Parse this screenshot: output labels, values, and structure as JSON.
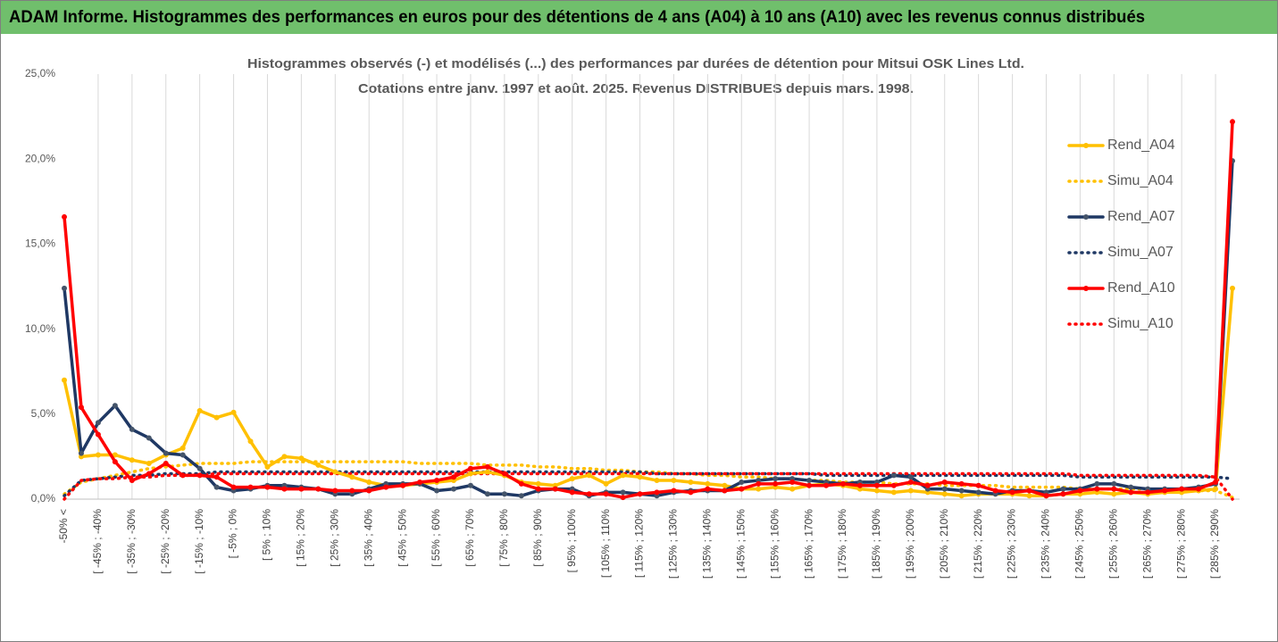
{
  "banner": "ADAM Informe. Histogrammes des performances en euros pour des détentions de 4 ans (A04) à 10 ans (A10) avec les revenus connus distribués",
  "chart_data": {
    "type": "line",
    "title": "Histogrammes observés (-) et modélisés (...) des performances par durées de détention pour Mitsui OSK Lines Ltd.",
    "subtitle": "Cotations entre janv. 1997 et août. 2025. Revenus DISTRIBUES depuis mars. 1998.",
    "categories": [
      "-50% <",
      null,
      "[ -45% ; -40%",
      null,
      "[ -35% ; -30%",
      null,
      "[ -25% ; -20%",
      null,
      "[ -15% ; -10%",
      null,
      "[ -5% ; 0%",
      null,
      "[ 5% ; 10%",
      null,
      "[ 15% ; 20%",
      null,
      "[ 25% ; 30%",
      null,
      "[ 35% ; 40%",
      null,
      "[ 45% ; 50%",
      null,
      "[ 55% ; 60%",
      null,
      "[ 65% ; 70%",
      null,
      "[ 75% ; 80%",
      null,
      "[ 85% ; 90%",
      null,
      "[ 95% ; 100%",
      null,
      "[ 105% ; 110%",
      null,
      "[ 115% ; 120%",
      null,
      "[ 125% ; 130%",
      null,
      "[ 135% ; 140%",
      null,
      "[ 145% ; 150%",
      null,
      "[ 155% ; 160%",
      null,
      "[ 165% ; 170%",
      null,
      "[ 175% ; 180%",
      null,
      "[ 185% ; 190%",
      null,
      "[ 195% ; 200%",
      null,
      "[ 205% ; 210%",
      null,
      "[ 215% ; 220%",
      null,
      "[ 225% ; 230%",
      null,
      "[ 235% ; 240%",
      null,
      "[ 245% ; 250%",
      null,
      "[ 255% ; 260%",
      null,
      "[ 265% ; 270%",
      null,
      "[ 275% ; 280%",
      null,
      "[ 285% ; 290%",
      null
    ],
    "series": [
      {
        "name": "Rend_A04",
        "color": "#ffc000",
        "dashed": false,
        "markers": true,
        "values": [
          7.0,
          2.5,
          2.6,
          2.6,
          2.3,
          2.1,
          2.6,
          3.0,
          5.2,
          4.8,
          5.1,
          3.4,
          1.9,
          2.5,
          2.4,
          2.0,
          1.6,
          1.3,
          1.0,
          0.8,
          0.8,
          0.9,
          1.0,
          1.1,
          1.5,
          1.6,
          1.4,
          1.0,
          0.9,
          0.8,
          1.2,
          1.4,
          0.9,
          1.4,
          1.3,
          1.1,
          1.1,
          1.0,
          0.9,
          0.8,
          0.6,
          0.6,
          0.7,
          0.6,
          0.8,
          0.9,
          0.8,
          0.6,
          0.5,
          0.4,
          0.5,
          0.4,
          0.3,
          0.2,
          0.3,
          0.3,
          0.3,
          0.2,
          0.2,
          0.3,
          0.3,
          0.4,
          0.3,
          0.4,
          0.3,
          0.4,
          0.4,
          0.5,
          0.6,
          12.4
        ]
      },
      {
        "name": "Simu_A04",
        "color": "#ffc000",
        "dashed": true,
        "markers": false,
        "values": [
          0.3,
          1.0,
          1.2,
          1.4,
          1.6,
          1.8,
          1.9,
          2.0,
          2.1,
          2.1,
          2.1,
          2.2,
          2.2,
          2.2,
          2.2,
          2.2,
          2.2,
          2.2,
          2.2,
          2.2,
          2.2,
          2.1,
          2.1,
          2.1,
          2.1,
          2.0,
          2.0,
          2.0,
          1.9,
          1.9,
          1.8,
          1.8,
          1.7,
          1.7,
          1.6,
          1.6,
          1.5,
          1.5,
          1.4,
          1.4,
          1.3,
          1.3,
          1.2,
          1.2,
          1.1,
          1.1,
          1.0,
          1.0,
          1.0,
          0.9,
          0.9,
          0.9,
          0.8,
          0.8,
          0.8,
          0.8,
          0.7,
          0.7,
          0.7,
          0.7,
          0.6,
          0.6,
          0.6,
          0.6,
          0.6,
          0.5,
          0.5,
          0.5,
          0.5,
          0.1
        ]
      },
      {
        "name": "Rend_A07",
        "color": "#1f3864",
        "dashed": false,
        "markers": true,
        "values": [
          12.4,
          2.7,
          4.5,
          5.5,
          4.1,
          3.6,
          2.7,
          2.6,
          1.8,
          0.7,
          0.5,
          0.6,
          0.8,
          0.8,
          0.7,
          0.6,
          0.3,
          0.3,
          0.6,
          0.9,
          0.9,
          0.9,
          0.5,
          0.6,
          0.8,
          0.3,
          0.3,
          0.2,
          0.5,
          0.6,
          0.6,
          0.2,
          0.4,
          0.4,
          0.3,
          0.2,
          0.4,
          0.5,
          0.5,
          0.5,
          1.0,
          1.1,
          1.2,
          1.2,
          1.1,
          1.0,
          0.9,
          1.0,
          1.0,
          1.4,
          1.3,
          0.6,
          0.6,
          0.5,
          0.4,
          0.3,
          0.5,
          0.5,
          0.4,
          0.6,
          0.6,
          0.9,
          0.9,
          0.7,
          0.6,
          0.6,
          0.6,
          0.7,
          0.9,
          19.9
        ]
      },
      {
        "name": "Simu_A07",
        "color": "#1f3864",
        "dashed": true,
        "markers": false,
        "values": [
          0.2,
          1.1,
          1.2,
          1.3,
          1.4,
          1.4,
          1.5,
          1.5,
          1.5,
          1.6,
          1.6,
          1.6,
          1.6,
          1.6,
          1.6,
          1.6,
          1.6,
          1.6,
          1.6,
          1.6,
          1.6,
          1.6,
          1.6,
          1.6,
          1.6,
          1.6,
          1.6,
          1.6,
          1.6,
          1.6,
          1.6,
          1.6,
          1.6,
          1.6,
          1.6,
          1.5,
          1.5,
          1.5,
          1.5,
          1.5,
          1.5,
          1.5,
          1.5,
          1.5,
          1.5,
          1.4,
          1.4,
          1.4,
          1.4,
          1.4,
          1.4,
          1.4,
          1.4,
          1.4,
          1.4,
          1.4,
          1.4,
          1.4,
          1.4,
          1.4,
          1.3,
          1.3,
          1.3,
          1.3,
          1.3,
          1.3,
          1.3,
          1.3,
          1.3,
          1.2
        ]
      },
      {
        "name": "Rend_A10",
        "color": "#ff0000",
        "dashed": false,
        "markers": true,
        "values": [
          16.6,
          5.4,
          3.8,
          2.2,
          1.1,
          1.5,
          2.1,
          1.4,
          1.4,
          1.3,
          0.7,
          0.7,
          0.7,
          0.6,
          0.6,
          0.6,
          0.5,
          0.5,
          0.5,
          0.7,
          0.8,
          1.0,
          1.1,
          1.3,
          1.8,
          1.9,
          1.5,
          0.9,
          0.6,
          0.6,
          0.4,
          0.3,
          0.3,
          0.1,
          0.3,
          0.4,
          0.5,
          0.4,
          0.6,
          0.5,
          0.6,
          0.9,
          0.9,
          1.0,
          0.8,
          0.8,
          0.9,
          0.8,
          0.8,
          0.8,
          1.0,
          0.8,
          1.0,
          0.9,
          0.8,
          0.5,
          0.4,
          0.5,
          0.2,
          0.3,
          0.5,
          0.6,
          0.6,
          0.4,
          0.4,
          0.5,
          0.6,
          0.6,
          1.0,
          22.2
        ]
      },
      {
        "name": "Simu_A10",
        "color": "#ff0000",
        "dashed": true,
        "markers": false,
        "values": [
          0.0,
          1.1,
          1.2,
          1.2,
          1.3,
          1.3,
          1.4,
          1.4,
          1.4,
          1.5,
          1.5,
          1.5,
          1.5,
          1.5,
          1.5,
          1.5,
          1.5,
          1.5,
          1.5,
          1.5,
          1.5,
          1.5,
          1.5,
          1.5,
          1.5,
          1.5,
          1.5,
          1.5,
          1.5,
          1.5,
          1.5,
          1.5,
          1.5,
          1.5,
          1.5,
          1.5,
          1.5,
          1.5,
          1.5,
          1.5,
          1.5,
          1.5,
          1.5,
          1.5,
          1.5,
          1.5,
          1.5,
          1.5,
          1.5,
          1.5,
          1.5,
          1.5,
          1.5,
          1.5,
          1.5,
          1.5,
          1.5,
          1.5,
          1.5,
          1.5,
          1.4,
          1.4,
          1.4,
          1.4,
          1.4,
          1.4,
          1.4,
          1.4,
          1.3,
          0.0
        ]
      }
    ],
    "ylim": [
      0,
      25
    ],
    "yticks": [
      {
        "value": 0,
        "label": "0,0%"
      },
      {
        "value": 5,
        "label": "5,0%"
      },
      {
        "value": 10,
        "label": "10,0%"
      },
      {
        "value": 15,
        "label": "15,0%"
      },
      {
        "value": 20,
        "label": "20,0%"
      },
      {
        "value": 25,
        "label": "25,0%"
      }
    ],
    "grid": "x",
    "legend": "right"
  }
}
